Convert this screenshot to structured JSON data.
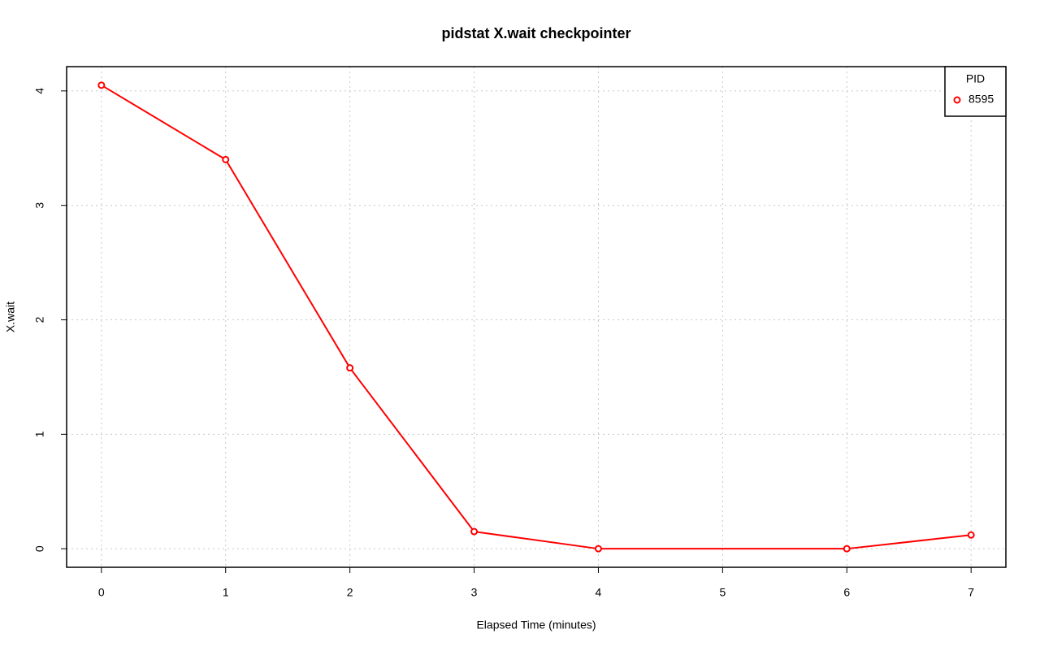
{
  "chart_data": {
    "type": "line",
    "title": "pidstat X.wait checkpointer",
    "x_label": "Elapsed Time (minutes)",
    "y_label": "X.wait",
    "x": [
      0,
      1,
      2,
      3,
      4,
      6,
      7
    ],
    "series": [
      {
        "name": "8595",
        "color": "#ff0000",
        "values": [
          4.05,
          3.4,
          1.58,
          0.15,
          0,
          0,
          0.12
        ]
      }
    ],
    "legend_title": "PID",
    "legend": "topright",
    "xlim": [
      -0.28,
      7.28
    ],
    "ylim": [
      -0.162,
      4.212
    ],
    "xticks": [
      0,
      1,
      2,
      3,
      4,
      5,
      6,
      7
    ],
    "yticks": [
      0,
      1,
      2,
      3,
      4
    ],
    "grid": true
  }
}
